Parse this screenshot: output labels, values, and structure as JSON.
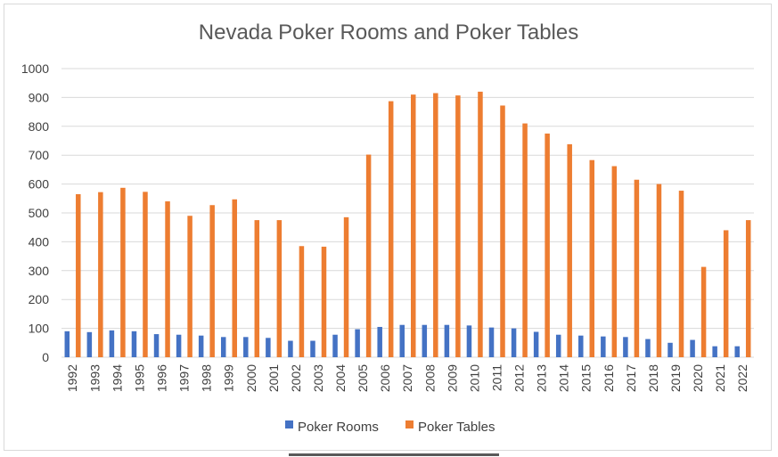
{
  "chart_data": {
    "type": "bar",
    "title": "Nevada Poker Rooms and Poker Tables",
    "xlabel": "",
    "ylabel": "",
    "ylim": [
      0,
      1000
    ],
    "yticks": [
      0,
      100,
      200,
      300,
      400,
      500,
      600,
      700,
      800,
      900,
      1000
    ],
    "grid": "horizontal",
    "legend_position": "bottom",
    "categories": [
      "1992",
      "1993",
      "1994",
      "1995",
      "1996",
      "1997",
      "1998",
      "1999",
      "2000",
      "2001",
      "2002",
      "2003",
      "2004",
      "2005",
      "2006",
      "2007",
      "2008",
      "2009",
      "2010",
      "2011",
      "2012",
      "2013",
      "2014",
      "2015",
      "2016",
      "2017",
      "2018",
      "2019",
      "2020",
      "2021",
      "2022"
    ],
    "series": [
      {
        "name": "Poker Rooms",
        "color": "#4472c4",
        "values": [
          90,
          87,
          93,
          90,
          80,
          78,
          75,
          70,
          70,
          67,
          57,
          57,
          78,
          97,
          105,
          112,
          112,
          112,
          110,
          103,
          100,
          88,
          78,
          75,
          72,
          70,
          63,
          50,
          60,
          38,
          38
        ]
      },
      {
        "name": "Poker Tables",
        "color": "#ed7d31",
        "values": [
          565,
          572,
          587,
          573,
          540,
          490,
          527,
          547,
          475,
          475,
          385,
          383,
          485,
          702,
          887,
          910,
          915,
          907,
          920,
          872,
          810,
          775,
          738,
          683,
          662,
          615,
          600,
          577,
          313,
          440,
          475
        ]
      }
    ]
  }
}
